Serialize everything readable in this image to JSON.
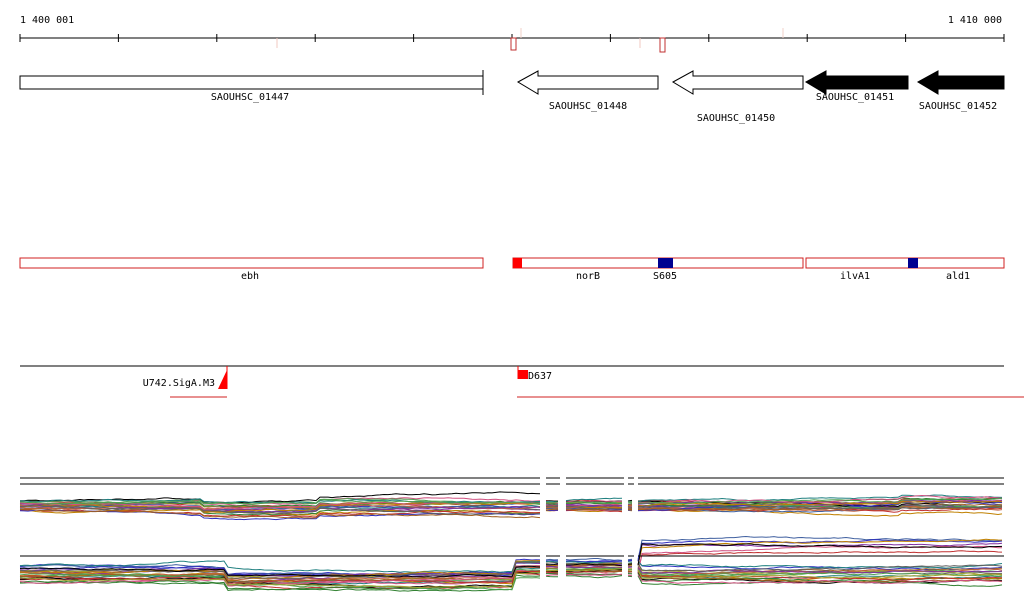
{
  "ruler": {
    "start": "1 400 001",
    "end": "1 410 000"
  },
  "genes": [
    {
      "label": "SAOUHSC_01447"
    },
    {
      "label": "SAOUHSC_01448"
    },
    {
      "label": "SAOUHSC_01450"
    },
    {
      "label": "SAOUHSC_01451"
    },
    {
      "label": "SAOUHSC_01452"
    }
  ],
  "features": [
    {
      "label": "ebh"
    },
    {
      "label": "norB"
    },
    {
      "label": "S605"
    },
    {
      "label": "ilvA1"
    },
    {
      "label": "ald1"
    }
  ],
  "promoters": [
    {
      "label": "U742.SigA.M3"
    },
    {
      "label": "D637"
    }
  ]
}
